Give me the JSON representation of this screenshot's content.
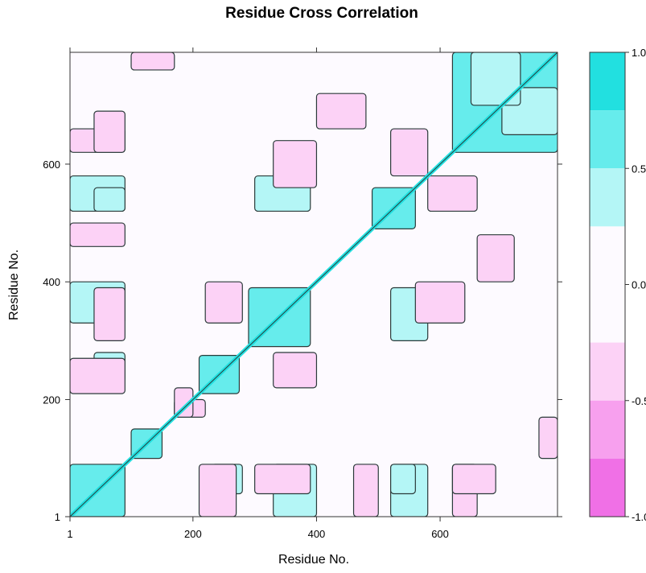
{
  "chart_data": {
    "type": "heatmap",
    "title": "Residue Cross Correlation",
    "xlabel": "Residue No.",
    "ylabel": "Residue No.",
    "xlim": [
      1,
      790
    ],
    "ylim": [
      1,
      790
    ],
    "x_ticks": [
      {
        "value": 1,
        "label": "1"
      },
      {
        "value": 200,
        "label": "200"
      },
      {
        "value": 400,
        "label": "400"
      },
      {
        "value": 600,
        "label": "600"
      }
    ],
    "y_ticks": [
      {
        "value": 1,
        "label": "1"
      },
      {
        "value": 200,
        "label": "200"
      },
      {
        "value": 400,
        "label": "400"
      },
      {
        "value": 600,
        "label": "600"
      }
    ],
    "colorbar": {
      "range": [
        -1.0,
        1.0
      ],
      "ticks": [
        {
          "value": 1.0,
          "label": "1.0"
        },
        {
          "value": 0.5,
          "label": "0.5"
        },
        {
          "value": 0.0,
          "label": "0.0"
        },
        {
          "value": -0.5,
          "label": "-0.5"
        },
        {
          "value": -1.0,
          "label": "-1.0"
        }
      ],
      "levels": [
        {
          "from": 0.75,
          "to": 1.0,
          "color": "#22e0e0"
        },
        {
          "from": 0.5,
          "to": 0.75,
          "color": "#66ecec"
        },
        {
          "from": 0.25,
          "to": 0.5,
          "color": "#b4f6f6"
        },
        {
          "from": -0.25,
          "to": 0.25,
          "color": "#fdfaff"
        },
        {
          "from": -0.5,
          "to": -0.25,
          "color": "#fcd2f6"
        },
        {
          "from": -0.75,
          "to": -0.5,
          "color": "#f7a0ee"
        },
        {
          "from": -1.0,
          "to": -0.75,
          "color": "#f070e6"
        }
      ]
    },
    "diagonal_correlation": 1.0,
    "regions": [
      {
        "x": [
          1,
          90
        ],
        "y": [
          1,
          90
        ],
        "value": 0.6
      },
      {
        "x": [
          100,
          150
        ],
        "y": [
          100,
          150
        ],
        "value": 0.65
      },
      {
        "x": [
          210,
          275
        ],
        "y": [
          210,
          275
        ],
        "value": 0.55
      },
      {
        "x": [
          290,
          390
        ],
        "y": [
          290,
          390
        ],
        "value": 0.5
      },
      {
        "x": [
          490,
          560
        ],
        "y": [
          490,
          560
        ],
        "value": 0.6
      },
      {
        "x": [
          620,
          790
        ],
        "y": [
          620,
          790
        ],
        "value": 0.6
      },
      {
        "x": [
          1,
          90
        ],
        "y": [
          330,
          400
        ],
        "value": 0.35
      },
      {
        "x": [
          1,
          90
        ],
        "y": [
          520,
          580
        ],
        "value": 0.35
      },
      {
        "x": [
          230,
          280
        ],
        "y": [
          40,
          90
        ],
        "value": 0.3
      },
      {
        "x": [
          300,
          390
        ],
        "y": [
          520,
          580
        ],
        "value": 0.3
      },
      {
        "x": [
          520,
          560
        ],
        "y": [
          40,
          90
        ],
        "value": 0.3
      },
      {
        "x": [
          700,
          790
        ],
        "y": [
          650,
          730
        ],
        "value": 0.4
      },
      {
        "x": [
          1,
          90
        ],
        "y": [
          210,
          270
        ],
        "value": -0.35
      },
      {
        "x": [
          1,
          90
        ],
        "y": [
          460,
          500
        ],
        "value": -0.35
      },
      {
        "x": [
          1,
          90
        ],
        "y": [
          620,
          660
        ],
        "value": -0.3
      },
      {
        "x": [
          170,
          220
        ],
        "y": [
          170,
          200
        ],
        "value": -0.3
      },
      {
        "x": [
          220,
          280
        ],
        "y": [
          330,
          400
        ],
        "value": -0.35
      },
      {
        "x": [
          300,
          390
        ],
        "y": [
          40,
          90
        ],
        "value": -0.3
      },
      {
        "x": [
          400,
          480
        ],
        "y": [
          660,
          720
        ],
        "value": -0.35
      },
      {
        "x": [
          560,
          640
        ],
        "y": [
          330,
          400
        ],
        "value": -0.35
      },
      {
        "x": [
          580,
          660
        ],
        "y": [
          520,
          580
        ],
        "value": -0.4
      },
      {
        "x": [
          620,
          690
        ],
        "y": [
          40,
          90
        ],
        "value": -0.3
      },
      {
        "x": [
          100,
          170
        ],
        "y": [
          760,
          790
        ],
        "value": -0.3
      }
    ]
  }
}
